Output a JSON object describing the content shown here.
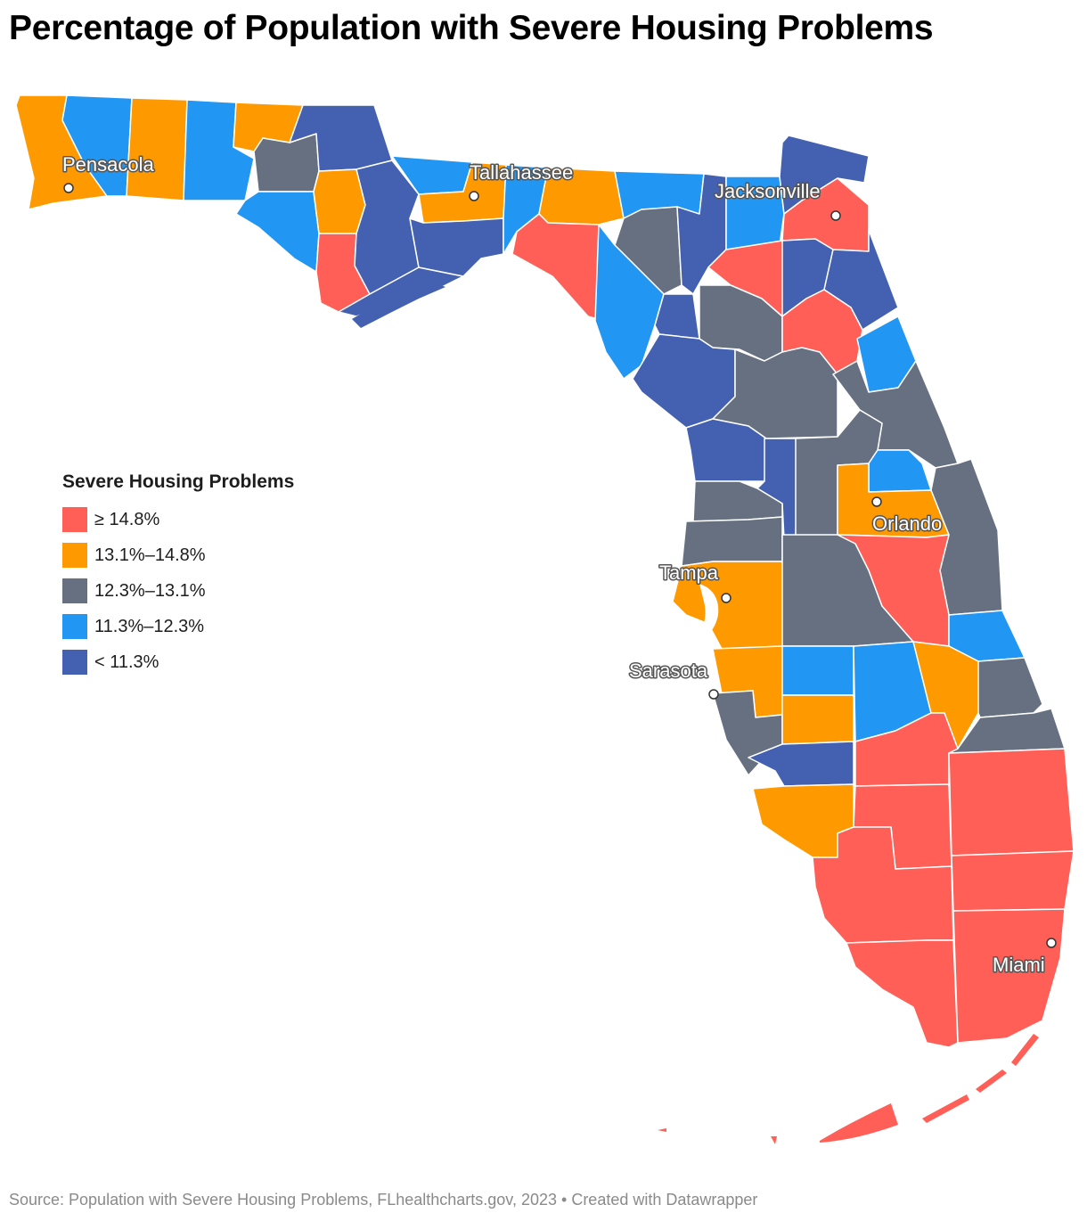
{
  "title": "Percentage of Population with Severe Housing Problems",
  "legend": {
    "title": "Severe Housing Problems",
    "items": [
      {
        "label": "≥ 14.8%",
        "color": "#ff5f56"
      },
      {
        "label": "13.1%–14.8%",
        "color": "#ff9900"
      },
      {
        "label": "12.3%–13.1%",
        "color": "#667080"
      },
      {
        "label": "11.3%–12.3%",
        "color": "#2196f3"
      },
      {
        "label": "< 11.3%",
        "color": "#4361b0"
      }
    ]
  },
  "cities": [
    {
      "name": "Pensacola"
    },
    {
      "name": "Tallahassee"
    },
    {
      "name": "Jacksonville"
    },
    {
      "name": "Orlando"
    },
    {
      "name": "Tampa"
    },
    {
      "name": "Sarasota"
    },
    {
      "name": "Miami"
    }
  ],
  "footer": "Source: Population with Severe Housing Problems, FLhealthcharts.gov, 2023 • Created with Datawrapper"
}
